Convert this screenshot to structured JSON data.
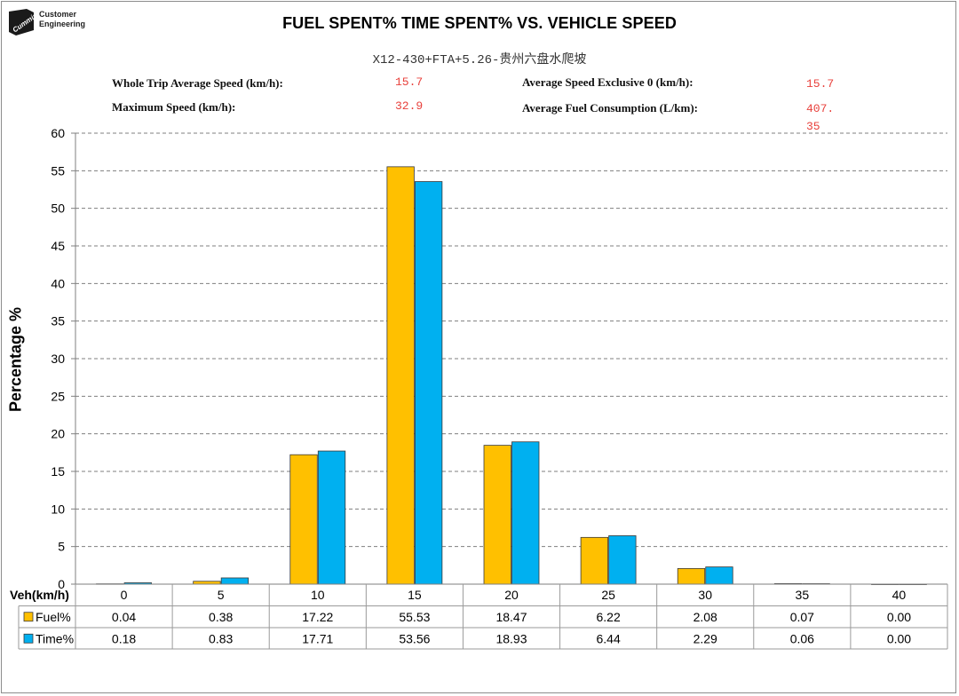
{
  "header": {
    "brand_line1": "Customer",
    "brand_line2": "Engineering",
    "logo_text": "Cummins"
  },
  "stats": {
    "avg_speed_label": "Whole Trip Average Speed (km/h):",
    "avg_speed_value": "15.7",
    "max_speed_label": "Maximum Speed (km/h):",
    "max_speed_value": "32.9",
    "avg_speed_excl0_label": "Average Speed Exclusive 0 (km/h):",
    "avg_speed_excl0_value": "15.7",
    "avg_fuel_label": "Average Fuel Consumption (L/km):",
    "avg_fuel_value_line1": "407.",
    "avg_fuel_value_line2": "35"
  },
  "colors": {
    "fuel": "#FFC000",
    "time": "#00B0F0",
    "stat_value": "#E8413C"
  },
  "chart_data": {
    "type": "bar",
    "title": "FUEL SPENT% TIME SPENT% VS. VEHICLE SPEED",
    "subtitle": "X12-430+FTA+5.26-贵州六盘水爬坡",
    "ylabel": "Percentage  %",
    "table_header_label": "Veh(km/h)",
    "ylim": [
      0,
      60
    ],
    "ytick_step": 5,
    "grid": true,
    "categories": [
      "0",
      "5",
      "10",
      "15",
      "20",
      "25",
      "30",
      "35",
      "40"
    ],
    "series": [
      {
        "name": "Fuel%",
        "values": [
          0.04,
          0.38,
          17.22,
          55.53,
          18.47,
          6.22,
          2.08,
          0.07,
          0.0
        ],
        "labels": [
          "0.04",
          "0.38",
          "17.22",
          "55.53",
          "18.47",
          "6.22",
          "2.08",
          "0.07",
          "0.00"
        ],
        "color": "#FFC000"
      },
      {
        "name": "Time%",
        "values": [
          0.18,
          0.83,
          17.71,
          53.56,
          18.93,
          6.44,
          2.29,
          0.06,
          0.0
        ],
        "labels": [
          "0.18",
          "0.83",
          "17.71",
          "53.56",
          "18.93",
          "6.44",
          "2.29",
          "0.06",
          "0.00"
        ],
        "color": "#00B0F0"
      }
    ]
  }
}
